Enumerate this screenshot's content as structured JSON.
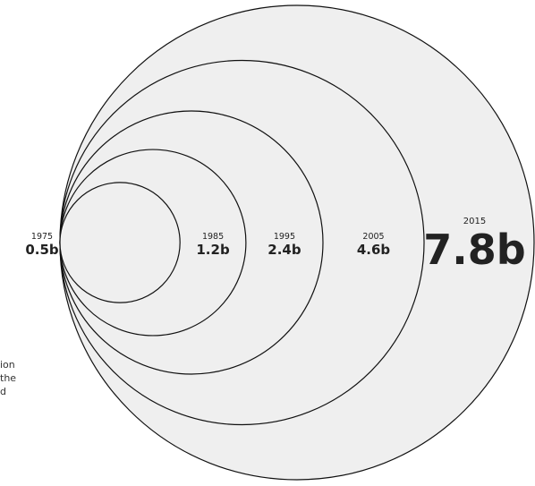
{
  "chart_data": {
    "type": "bubble",
    "unit_suffix": "b",
    "points": [
      {
        "year": "1975",
        "value": 0.5,
        "label": "0.5b"
      },
      {
        "year": "1985",
        "value": 1.2,
        "label": "1.2b"
      },
      {
        "year": "1995",
        "value": 2.4,
        "label": "2.4b"
      },
      {
        "year": "2005",
        "value": 4.6,
        "label": "4.6b"
      },
      {
        "year": "2015",
        "value": 7.8,
        "label": "7.8b"
      }
    ],
    "colors": {
      "fill": "#efefef",
      "stroke": "#111111",
      "text": "#222222"
    }
  },
  "side_note": {
    "lines": [
      "ion",
      "the",
      "d"
    ]
  }
}
